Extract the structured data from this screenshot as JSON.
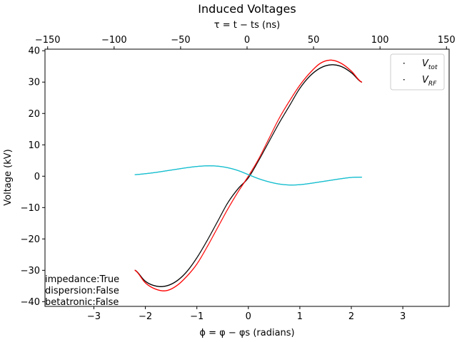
{
  "chart_data": {
    "type": "scatter",
    "title": "Induced Voltages",
    "xlabel": "ϕ = φ − φs (radians)",
    "ylabel": "Voltage (kV)",
    "xlabel_top": "τ = t − ts (ns)",
    "xlim": [
      -3.95,
      3.9
    ],
    "ylim": [
      -41.5,
      40.5
    ],
    "xlim_top": [
      -152,
      152
    ],
    "x_ticks": [
      -3,
      -2,
      -1,
      0,
      1,
      2,
      3
    ],
    "y_ticks": [
      -40,
      -30,
      -20,
      -10,
      0,
      10,
      20,
      30,
      40
    ],
    "top_ticks": [
      -150,
      -100,
      -50,
      0,
      50,
      100,
      150
    ],
    "x_tick_labels": [
      "−3",
      "−2",
      "−1",
      "0",
      "1",
      "2",
      "3"
    ],
    "y_tick_labels": [
      "−40",
      "−30",
      "−20",
      "−10",
      "0",
      "10",
      "20",
      "30",
      "40"
    ],
    "top_tick_labels": [
      "−150",
      "−100",
      "−50",
      "0",
      "50",
      "100",
      "150"
    ],
    "grid": false,
    "legend_position": "top-right",
    "legend": [
      {
        "main": "V",
        "sub": "tot",
        "color": "#000000"
      },
      {
        "main": "V",
        "sub": "RF",
        "color": "#ff0000"
      }
    ],
    "series": [
      {
        "legend": "Vtot",
        "color": "#000000",
        "x": [
          -2.2,
          -2.0,
          -1.8,
          -1.6,
          -1.4,
          -1.2,
          -1.0,
          -0.8,
          -0.6,
          -0.4,
          -0.2,
          0.0,
          0.2,
          0.4,
          0.6,
          0.8,
          1.0,
          1.2,
          1.4,
          1.6,
          1.8,
          2.0,
          2.2
        ],
        "y": [
          -30,
          -33.5,
          -35,
          -35,
          -33.5,
          -30.5,
          -26,
          -20.5,
          -14.5,
          -8.5,
          -4,
          -0.5,
          5,
          11,
          17,
          22.5,
          28,
          32,
          34.5,
          35.5,
          35,
          33,
          30
        ]
      },
      {
        "legend": "VRF",
        "color": "#ff0000",
        "x": [
          -2.2,
          -2.0,
          -1.8,
          -1.6,
          -1.4,
          -1.2,
          -1.0,
          -0.8,
          -0.6,
          -0.4,
          -0.2,
          0.0,
          0.2,
          0.4,
          0.6,
          0.8,
          1.0,
          1.2,
          1.4,
          1.6,
          1.8,
          2.0,
          2.2
        ],
        "y": [
          -30,
          -34,
          -36,
          -36.5,
          -35,
          -32,
          -28,
          -22.5,
          -16.5,
          -10.5,
          -5,
          0,
          5.5,
          12,
          18.5,
          24,
          29,
          33,
          36,
          37,
          36,
          33.5,
          30
        ]
      },
      {
        "legend": "",
        "color": "#17becf",
        "x": [
          -2.2,
          -2.0,
          -1.8,
          -1.6,
          -1.4,
          -1.2,
          -1.0,
          -0.8,
          -0.6,
          -0.4,
          -0.2,
          0.0,
          0.2,
          0.4,
          0.6,
          0.8,
          1.0,
          1.2,
          1.4,
          1.6,
          1.8,
          2.0,
          2.2
        ],
        "y": [
          0.5,
          0.8,
          1.2,
          1.7,
          2.2,
          2.7,
          3.1,
          3.3,
          3.2,
          2.7,
          1.8,
          0.5,
          -0.8,
          -1.8,
          -2.5,
          -2.8,
          -2.7,
          -2.3,
          -1.8,
          -1.3,
          -0.8,
          -0.4,
          -0.3
        ]
      }
    ],
    "annotations": [
      "impedance:True",
      "dispersion:False",
      "betatronic:False"
    ]
  }
}
